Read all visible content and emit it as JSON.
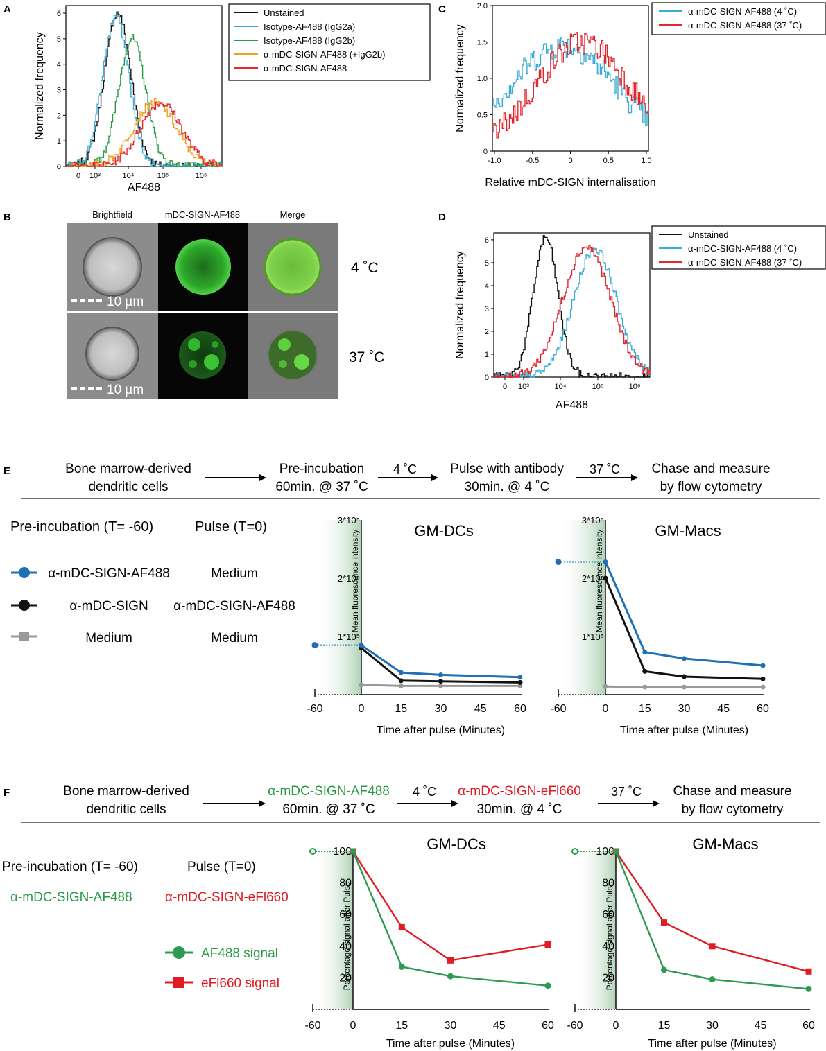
{
  "panels": {
    "A": "A",
    "B": "B",
    "C": "C",
    "D": "D",
    "E": "E",
    "F": "F"
  },
  "colors": {
    "black": "#111111",
    "cyan": "#39acd8",
    "green": "#2b9a47",
    "orange": "#f0a020",
    "red": "#e3262e",
    "blue": "#1f6fb5",
    "grey": "#999999",
    "dgreen": "#2f9a52",
    "sred": "#e01b23"
  },
  "panelB": {
    "cols": [
      "Brightfield",
      "mDC-SIGN-AF488",
      "Merge"
    ],
    "rows": [
      "4 ˚C",
      "37 ˚C"
    ],
    "scalebar": "10 µm"
  },
  "panelE": {
    "flow": [
      "Bone marrow-derived",
      "dendritic cells",
      "Pre-incubation",
      "60min. @ 37 ˚C",
      "Pulse with antibody",
      "30min. @ 4 ˚C",
      "Chase and measure",
      "by flow cytometry"
    ],
    "arrows": [
      "4 ˚C",
      "37 ˚C"
    ],
    "legend_headers": [
      "Pre-incubation (T= -60)",
      "Pulse (T=0)"
    ],
    "legend_rows": [
      [
        "α-mDC-SIGN-AF488",
        "Medium"
      ],
      [
        "α-mDC-SIGN",
        "α-mDC-SIGN-AF488"
      ],
      [
        "Medium",
        "Medium"
      ]
    ]
  },
  "panelF": {
    "flow": [
      "Bone marrow-derived",
      "dendritic cells",
      "α-mDC-SIGN-AF488",
      "60min. @ 37 ˚C",
      "α-mDC-SIGN-eFl660",
      "30min. @ 4 ˚C",
      "Chase and measure",
      "by flow cytometry"
    ],
    "arrows": [
      "4 ˚C",
      "37 ˚C"
    ],
    "legend_headers": [
      "Pre-incubation (T= -60)",
      "Pulse (T=0)"
    ],
    "legend_values": [
      "α-mDC-SIGN-AF488",
      "α-mDC-SIGN-eFl660"
    ],
    "signals": [
      "AF488 signal",
      "eFl660 signal"
    ]
  },
  "chart_data": [
    {
      "id": "A",
      "type": "line",
      "xlabel": "AF488",
      "ylabel": "Normalized frequency",
      "xscale": "log",
      "xticks": [
        "0",
        "10³",
        "10⁴",
        "10⁵",
        "10⁶"
      ],
      "ylim": [
        0,
        6.3
      ],
      "yticks": [
        "0",
        "1",
        "2",
        "3",
        "4",
        "5",
        "6"
      ],
      "legend_position": "top-right",
      "series": [
        {
          "name": "Unstained",
          "peak_log10": 3.55,
          "width": 0.32,
          "height": 6.0
        },
        {
          "name": "Isotype-AF488 (IgG2a)",
          "peak_log10": 3.5,
          "width": 0.32,
          "height": 5.9
        },
        {
          "name": "Isotype-AF488 (IgG2b)",
          "peak_log10": 3.9,
          "width": 0.33,
          "height": 5.0
        },
        {
          "name": "α-mDC-SIGN-AF488 (+IgG2b)",
          "peak_log10": 4.45,
          "width": 0.52,
          "height": 2.5
        },
        {
          "name": "α-mDC-SIGN-AF488",
          "peak_log10": 4.6,
          "width": 0.5,
          "height": 2.5
        }
      ]
    },
    {
      "id": "C",
      "type": "line",
      "xlabel": "Relative mDC-SIGN internalisation",
      "ylabel": "Normalized frequency",
      "xlim": [
        -1.0,
        1.0
      ],
      "xticks": [
        "-1.0",
        "-0.5",
        "0",
        "0.5",
        "1.0"
      ],
      "ylim": [
        0,
        2.0
      ],
      "yticks": [
        "0",
        "0.5",
        "1.0",
        "1.5",
        "2.0"
      ],
      "legend_position": "top-right",
      "series": [
        {
          "name": "α-mDC-SIGN-AF488 (4 ˚C)",
          "center": -0.1,
          "width": 0.7,
          "height": 1.45
        },
        {
          "name": "α-mDC-SIGN-AF488 (37 ˚C)",
          "center": 0.15,
          "width": 0.6,
          "height": 1.5
        }
      ]
    },
    {
      "id": "D",
      "type": "line",
      "xlabel": "AF488",
      "ylabel": "Normalized frequency",
      "xscale": "log",
      "xticks": [
        "0",
        "10³",
        "10⁴",
        "10⁵",
        "10⁶"
      ],
      "ylim": [
        0,
        6.3
      ],
      "yticks": [
        "0",
        "1",
        "2",
        "3",
        "4",
        "5",
        "6"
      ],
      "legend_position": "top-right",
      "series": [
        {
          "name": "Unstained",
          "peak_log10": 3.55,
          "width": 0.3,
          "height": 6.1
        },
        {
          "name": "α-mDC-SIGN-AF488 (4 ˚C)",
          "peak_log10": 4.75,
          "width": 0.52,
          "height": 5.6
        },
        {
          "name": "α-mDC-SIGN-AF488 (37 ˚C)",
          "peak_log10": 4.55,
          "width": 0.58,
          "height": 5.7
        }
      ]
    },
    {
      "id": "E1",
      "type": "line",
      "title": "GM-DCs",
      "xlabel": "Time after pulse (Minutes)",
      "ylabel": "Mean fluorescence intensity",
      "x": [
        0,
        15,
        30,
        60
      ],
      "xticks": [
        "-60",
        "0",
        "15",
        "30",
        "45",
        "60"
      ],
      "ylim": [
        0,
        300000
      ],
      "yticks": [
        "1*10⁵",
        "2*10⁵",
        "3*10⁵"
      ],
      "pre_point": {
        "x": -60,
        "y": 85000
      },
      "series": [
        {
          "name": "α-mDC-SIGN-AF488",
          "values": [
            85000,
            38000,
            34000,
            30000
          ]
        },
        {
          "name": "α-mDC-SIGN",
          "values": [
            80000,
            24000,
            23000,
            21000
          ]
        },
        {
          "name": "Medium",
          "values": [
            17000,
            15000,
            15000,
            15000
          ]
        }
      ]
    },
    {
      "id": "E2",
      "type": "line",
      "title": "GM-Macs",
      "xlabel": "Time after pulse (Minutes)",
      "ylabel": "Mean fluorescence intensity",
      "x": [
        0,
        15,
        30,
        60
      ],
      "xticks": [
        "-60",
        "0",
        "15",
        "30",
        "45",
        "60"
      ],
      "ylim": [
        0,
        300000
      ],
      "yticks": [
        "1*10⁵",
        "2*10⁵",
        "3*10⁵"
      ],
      "pre_point": {
        "x": -60,
        "y": 228000
      },
      "series": [
        {
          "name": "α-mDC-SIGN-AF488",
          "values": [
            228000,
            73000,
            62000,
            50000
          ]
        },
        {
          "name": "α-mDC-SIGN",
          "values": [
            200000,
            40000,
            31000,
            27000
          ]
        },
        {
          "name": "Medium",
          "values": [
            14000,
            13000,
            13000,
            13000
          ]
        }
      ]
    },
    {
      "id": "F1",
      "type": "line",
      "title": "GM-DCs",
      "xlabel": "Time after pulse (Minutes)",
      "ylabel": "Percentage signal after Pulse",
      "x": [
        0,
        15,
        30,
        60
      ],
      "xticks": [
        "-60",
        "0",
        "15",
        "30",
        "45",
        "60"
      ],
      "ylim": [
        0,
        100
      ],
      "yticks": [
        "20",
        "40",
        "60",
        "80",
        "100"
      ],
      "pre_point": {
        "x": -60,
        "y": 100
      },
      "series": [
        {
          "name": "AF488 signal",
          "values": [
            100,
            27,
            21,
            15
          ]
        },
        {
          "name": "eFl660 signal",
          "values": [
            100,
            52,
            31,
            41
          ]
        }
      ]
    },
    {
      "id": "F2",
      "type": "line",
      "title": "GM-Macs",
      "xlabel": "Time after pulse (Minutes)",
      "ylabel": "Percentage signal after Pulse",
      "x": [
        0,
        15,
        30,
        60
      ],
      "xticks": [
        "-60",
        "0",
        "15",
        "30",
        "45",
        "60"
      ],
      "ylim": [
        0,
        100
      ],
      "yticks": [
        "20",
        "40",
        "60",
        "80",
        "100"
      ],
      "pre_point": {
        "x": -60,
        "y": 100
      },
      "series": [
        {
          "name": "AF488 signal",
          "values": [
            100,
            25,
            19,
            13
          ]
        },
        {
          "name": "eFl660 signal",
          "values": [
            100,
            55,
            40,
            24
          ]
        }
      ]
    }
  ]
}
